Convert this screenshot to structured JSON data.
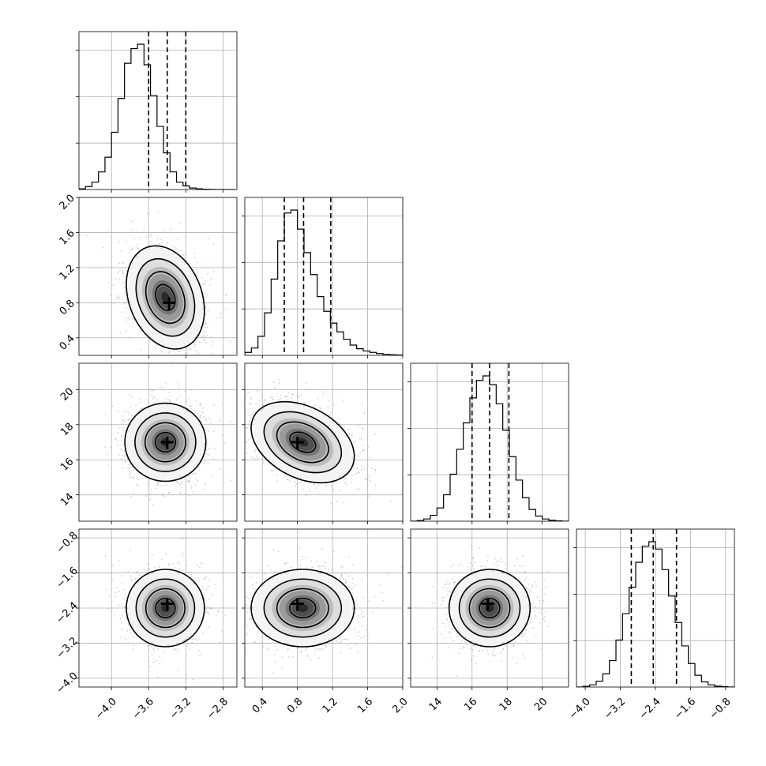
{
  "chart_data": {
    "type": "corner",
    "parameters": [
      {
        "range": [
          -4.35,
          -2.65
        ],
        "ticks": [
          -4.0,
          -3.6,
          -3.2,
          -2.8
        ],
        "tick_labels": [
          "−4.0",
          "−3.6",
          "−3.2",
          "−2.8"
        ],
        "quantiles": [
          -3.6,
          -3.4,
          -3.2
        ],
        "hist_bins": [
          -4.35,
          -4.28,
          -4.21,
          -4.14,
          -4.07,
          -4.0,
          -3.93,
          -3.86,
          -3.79,
          -3.72,
          -3.65,
          -3.58,
          -3.51,
          -3.44,
          -3.37,
          -3.3,
          -3.23,
          -3.16,
          -3.09,
          -3.02,
          -2.95,
          -2.88,
          -2.81,
          -2.74,
          -2.67
        ],
        "hist_counts": [
          0.005,
          0.02,
          0.05,
          0.12,
          0.22,
          0.39,
          0.62,
          0.86,
          0.96,
          0.99,
          0.85,
          0.64,
          0.43,
          0.25,
          0.12,
          0.05,
          0.025,
          0.01,
          0.005,
          0.002,
          0.001,
          0.0,
          0.0,
          0.0
        ]
      },
      {
        "range": [
          0.2,
          2.0
        ],
        "ticks": [
          0.4,
          0.8,
          1.2,
          1.6,
          2.0
        ],
        "tick_labels": [
          "0.4",
          "0.8",
          "1.2",
          "1.6",
          "2.0"
        ],
        "quantiles": [
          0.65,
          0.87,
          1.18
        ],
        "hist_bins": [
          0.2,
          0.275,
          0.35,
          0.425,
          0.5,
          0.575,
          0.65,
          0.725,
          0.8,
          0.875,
          0.95,
          1.025,
          1.1,
          1.175,
          1.25,
          1.325,
          1.4,
          1.475,
          1.55,
          1.625,
          1.7,
          1.775,
          1.85,
          1.925,
          2.0
        ],
        "hist_counts": [
          0.02,
          0.05,
          0.13,
          0.29,
          0.52,
          0.78,
          0.97,
          0.99,
          0.86,
          0.7,
          0.55,
          0.4,
          0.3,
          0.22,
          0.16,
          0.11,
          0.07,
          0.045,
          0.03,
          0.02,
          0.012,
          0.007,
          0.004,
          0.002
        ]
      },
      {
        "range": [
          12.5,
          21.5
        ],
        "ticks": [
          14,
          16,
          18,
          20
        ],
        "tick_labels": [
          "14",
          "16",
          "18",
          "20"
        ],
        "quantiles": [
          16.0,
          17.0,
          18.1
        ],
        "hist_bins": [
          12.5,
          12.875,
          13.25,
          13.625,
          14.0,
          14.375,
          14.75,
          15.125,
          15.5,
          15.875,
          16.25,
          16.625,
          17.0,
          17.375,
          17.75,
          18.125,
          18.5,
          18.875,
          19.25,
          19.625,
          20.0,
          20.375,
          20.75,
          21.125,
          21.5
        ],
        "hist_counts": [
          0.0,
          0.005,
          0.015,
          0.04,
          0.09,
          0.18,
          0.32,
          0.49,
          0.67,
          0.84,
          0.96,
          0.99,
          0.93,
          0.8,
          0.62,
          0.44,
          0.28,
          0.16,
          0.08,
          0.035,
          0.015,
          0.006,
          0.002,
          0.0
        ]
      },
      {
        "range": [
          -4.2,
          -0.6
        ],
        "ticks": [
          -4.0,
          -3.2,
          -2.4,
          -1.6,
          -0.8
        ],
        "tick_labels": [
          "−4.0",
          "−3.2",
          "−2.4",
          "−1.6",
          "−0.8"
        ],
        "quantiles": [
          -2.95,
          -2.45,
          -1.92
        ],
        "hist_bins": [
          -4.2,
          -4.05,
          -3.9,
          -3.75,
          -3.6,
          -3.45,
          -3.3,
          -3.15,
          -3.0,
          -2.85,
          -2.7,
          -2.55,
          -2.4,
          -2.25,
          -2.1,
          -1.95,
          -1.8,
          -1.65,
          -1.5,
          -1.35,
          -1.2,
          -1.05,
          -0.9,
          -0.75,
          -0.6
        ],
        "hist_counts": [
          0.0,
          0.005,
          0.015,
          0.04,
          0.09,
          0.18,
          0.32,
          0.5,
          0.68,
          0.85,
          0.96,
          0.99,
          0.94,
          0.8,
          0.62,
          0.44,
          0.28,
          0.16,
          0.08,
          0.035,
          0.015,
          0.006,
          0.002,
          0.0
        ]
      }
    ],
    "pair_stats": [
      {
        "row": 1,
        "col": 0,
        "mean": [
          -3.42,
          0.86
        ],
        "sd": [
          0.2,
          0.28
        ],
        "corr": -0.25,
        "peak": [
          -3.38,
          0.8
        ]
      },
      {
        "row": 2,
        "col": 0,
        "mean": [
          -3.42,
          17.0
        ],
        "sd": [
          0.2,
          1.1
        ],
        "corr": 0.0,
        "peak": [
          -3.4,
          17.0
        ]
      },
      {
        "row": 2,
        "col": 1,
        "mean": [
          0.86,
          17.0
        ],
        "sd": [
          0.28,
          1.1
        ],
        "corr": -0.35,
        "peak": [
          0.8,
          17.0
        ]
      },
      {
        "row": 3,
        "col": 0,
        "mean": [
          -3.42,
          -2.4
        ],
        "sd": [
          0.2,
          0.42
        ],
        "corr": 0.0,
        "peak": [
          -3.4,
          -2.3
        ]
      },
      {
        "row": 3,
        "col": 1,
        "mean": [
          0.86,
          -2.4
        ],
        "sd": [
          0.28,
          0.42
        ],
        "corr": 0.0,
        "peak": [
          0.8,
          -2.3
        ]
      },
      {
        "row": 3,
        "col": 2,
        "mean": [
          17.0,
          -2.4
        ],
        "sd": [
          1.1,
          0.42
        ],
        "corr": 0.0,
        "peak": [
          16.9,
          -2.3
        ]
      }
    ],
    "contour_levels_sigma": [
      0.5,
      1.0,
      1.5,
      2.0
    ],
    "grid": true,
    "legend": "none",
    "title": ""
  }
}
